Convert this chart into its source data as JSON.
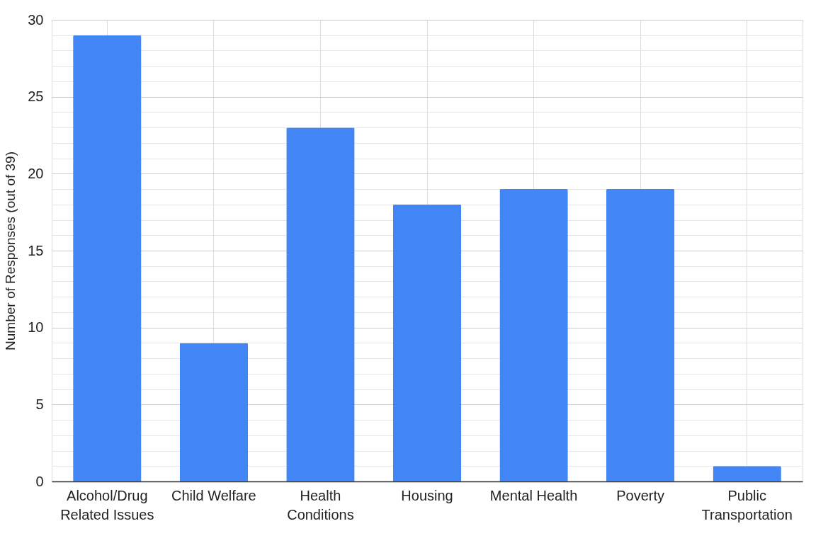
{
  "chart_data": {
    "type": "bar",
    "ylabel": "Number of Responses (out of 39)",
    "categories": [
      "Alcohol/Drug Related Issues",
      "Child Welfare",
      "Health Conditions",
      "Housing",
      "Mental Health",
      "Poverty",
      "Public Transportation"
    ],
    "values": [
      29,
      9,
      23,
      18,
      19,
      19,
      1
    ],
    "color": "#4285f4",
    "ylim": [
      0,
      30
    ],
    "yticks": [
      0,
      {
        "value": 1,
        "label": null
      },
      {
        "value": 2,
        "label": null
      },
      {
        "value": 3,
        "label": null
      },
      {
        "value": 4,
        "label": null
      },
      5,
      {
        "value": 6,
        "label": null
      },
      {
        "value": 7,
        "label": null
      },
      {
        "value": 8,
        "label": null
      },
      {
        "value": 9,
        "label": null
      },
      10,
      {
        "value": 11,
        "label": null
      },
      {
        "value": 12,
        "label": null
      },
      {
        "value": 13,
        "label": null
      },
      {
        "value": 14,
        "label": null
      },
      15,
      {
        "value": 16,
        "label": null
      },
      {
        "value": 17,
        "label": null
      },
      {
        "value": 18,
        "label": null
      },
      {
        "value": 19,
        "label": null
      },
      20,
      {
        "value": 21,
        "label": null
      },
      {
        "value": 22,
        "label": null
      },
      {
        "value": 23,
        "label": null
      },
      {
        "value": 24,
        "label": null
      },
      25,
      {
        "value": 26,
        "label": null
      },
      {
        "value": 27,
        "label": null
      },
      {
        "value": 28,
        "label": null
      },
      {
        "value": 29,
        "label": null
      },
      30
    ],
    "grid": true
  }
}
